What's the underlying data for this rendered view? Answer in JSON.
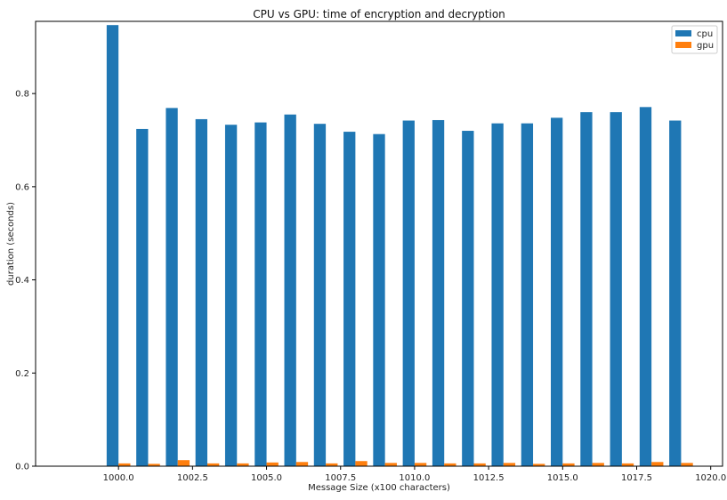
{
  "chart_data": {
    "type": "bar",
    "title": "CPU vs GPU: time of encryption and decryption",
    "xlabel": "Message Size (x100 characters)",
    "ylabel": "duration (seconds)",
    "xlim": [
      997.2,
      1020.4
    ],
    "ylim": [
      0,
      0.955
    ],
    "x_ticks": [
      "1000.0",
      "1002.5",
      "1005.0",
      "1007.5",
      "1010.0",
      "1012.5",
      "1015.0",
      "1017.5",
      "1020.0"
    ],
    "y_ticks": [
      "0.0",
      "0.2",
      "0.4",
      "0.6",
      "0.8"
    ],
    "x": [
      1000,
      1001,
      1002,
      1003,
      1004,
      1005,
      1006,
      1007,
      1008,
      1009,
      1010,
      1011,
      1012,
      1013,
      1014,
      1015,
      1016,
      1017,
      1018,
      1019
    ],
    "series": [
      {
        "name": "cpu",
        "color": "#1f77b4",
        "values": [
          0.947,
          0.724,
          0.769,
          0.745,
          0.733,
          0.738,
          0.755,
          0.735,
          0.718,
          0.713,
          0.742,
          0.743,
          0.72,
          0.736,
          0.736,
          0.748,
          0.76,
          0.76,
          0.771,
          0.742
        ]
      },
      {
        "name": "gpu",
        "color": "#ff7f0e",
        "values": [
          0.006,
          0.005,
          0.013,
          0.006,
          0.006,
          0.008,
          0.009,
          0.006,
          0.011,
          0.007,
          0.007,
          0.006,
          0.006,
          0.007,
          0.005,
          0.006,
          0.007,
          0.006,
          0.009,
          0.007
        ]
      }
    ],
    "grid": false,
    "legend_position": "top-right"
  }
}
